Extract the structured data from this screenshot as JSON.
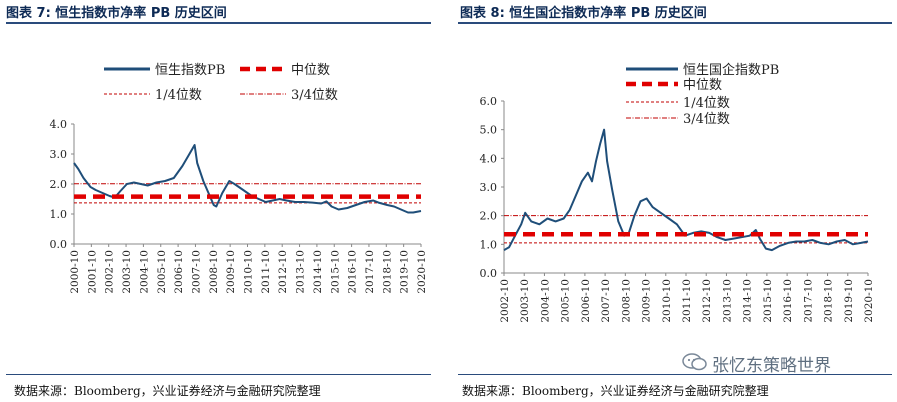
{
  "left": {
    "title": "图表 7: 恒生指数市净率 PB 历史区间",
    "source": "数据来源：Bloomberg，兴业证券经济与金融研究院整理"
  },
  "right": {
    "title": "图表 8: 恒生国企指数市净率 PB 历史区间",
    "source": "数据来源：Bloomberg，兴业证券经济与金融研究院整理"
  },
  "watermark": {
    "text": "张忆东策略世界"
  },
  "colors": {
    "series": "#1f4e79",
    "median": "#e00000",
    "quartile": "#c00000",
    "rule": "#2a4b7c"
  },
  "chart_data": [
    {
      "type": "line",
      "title": "恒生指数市净率 PB 历史区间",
      "legend": {
        "series": "恒生指数PB",
        "median": "中位数",
        "q1": "1/4位数",
        "q3": "3/4位数"
      },
      "ylim": [
        0,
        4
      ],
      "yticks": [
        "0.0",
        "1.0",
        "2.0",
        "3.0",
        "4.0"
      ],
      "xlim": [
        2000.75,
        2020.75
      ],
      "xticks": [
        "2000-10",
        "2001-10",
        "2002-10",
        "2003-10",
        "2004-10",
        "2005-10",
        "2006-10",
        "2007-10",
        "2008-10",
        "2009-10",
        "2010-10",
        "2011-10",
        "2012-10",
        "2013-10",
        "2014-10",
        "2015-10",
        "2016-10",
        "2017-10",
        "2018-10",
        "2019-10",
        "2020-10"
      ],
      "median": 1.58,
      "q1": 1.37,
      "q3": 2.01,
      "x": [
        2000.75,
        2001.0,
        2001.3,
        2001.7,
        2002.0,
        2002.4,
        2002.8,
        2003.1,
        2003.4,
        2003.8,
        2004.2,
        2004.6,
        2005.0,
        2005.5,
        2006.0,
        2006.5,
        2007.0,
        2007.4,
        2007.7,
        2007.85,
        2008.2,
        2008.5,
        2008.8,
        2008.95,
        2009.3,
        2009.7,
        2010.0,
        2010.5,
        2011.0,
        2011.4,
        2011.8,
        2012.2,
        2012.6,
        2013.0,
        2013.5,
        2014.0,
        2014.5,
        2015.0,
        2015.3,
        2015.6,
        2016.0,
        2016.5,
        2017.0,
        2017.5,
        2018.0,
        2018.3,
        2018.8,
        2019.2,
        2019.6,
        2020.0,
        2020.3,
        2020.75
      ],
      "values": [
        2.7,
        2.5,
        2.2,
        1.9,
        1.8,
        1.7,
        1.6,
        1.55,
        1.75,
        2.0,
        2.05,
        2.0,
        1.95,
        2.05,
        2.1,
        2.2,
        2.6,
        3.0,
        3.3,
        2.7,
        2.1,
        1.7,
        1.3,
        1.25,
        1.7,
        2.1,
        2.0,
        1.8,
        1.6,
        1.5,
        1.4,
        1.45,
        1.5,
        1.45,
        1.4,
        1.4,
        1.38,
        1.35,
        1.42,
        1.25,
        1.15,
        1.2,
        1.3,
        1.4,
        1.45,
        1.38,
        1.3,
        1.25,
        1.15,
        1.05,
        1.05,
        1.1
      ]
    },
    {
      "type": "line",
      "title": "恒生国企指数市净率 PB 历史区间",
      "legend": {
        "series": "恒生国企指数PB",
        "median": "中位数",
        "q1": "1/4位数",
        "q3": "3/4位数"
      },
      "ylim": [
        0,
        6
      ],
      "yticks": [
        "0.0",
        "1.0",
        "2.0",
        "3.0",
        "4.0",
        "5.0",
        "6.0"
      ],
      "xlim": [
        2002.75,
        2020.75
      ],
      "xticks": [
        "2002-10",
        "2003-10",
        "2004-10",
        "2005-10",
        "2006-10",
        "2007-10",
        "2008-10",
        "2009-10",
        "2010-10",
        "2011-10",
        "2012-10",
        "2013-10",
        "2014-10",
        "2015-10",
        "2016-10",
        "2017-10",
        "2018-10",
        "2019-10",
        "2020-10"
      ],
      "median": 1.35,
      "q1": 1.05,
      "q3": 2.0,
      "x": [
        2002.75,
        2003.0,
        2003.3,
        2003.6,
        2003.8,
        2004.1,
        2004.5,
        2004.9,
        2005.3,
        2005.7,
        2006.0,
        2006.3,
        2006.6,
        2006.9,
        2007.1,
        2007.3,
        2007.5,
        2007.7,
        2007.85,
        2008.1,
        2008.4,
        2008.7,
        2008.9,
        2009.2,
        2009.5,
        2009.8,
        2010.1,
        2010.5,
        2010.9,
        2011.3,
        2011.7,
        2012.1,
        2012.5,
        2012.9,
        2013.3,
        2013.7,
        2014.1,
        2014.5,
        2014.9,
        2015.2,
        2015.4,
        2015.7,
        2016.0,
        2016.4,
        2016.8,
        2017.2,
        2017.6,
        2018.0,
        2018.4,
        2018.8,
        2019.2,
        2019.6,
        2020.0,
        2020.4,
        2020.75
      ],
      "values": [
        0.8,
        0.9,
        1.3,
        1.7,
        2.1,
        1.8,
        1.7,
        1.9,
        1.8,
        1.9,
        2.2,
        2.7,
        3.2,
        3.5,
        3.2,
        3.9,
        4.5,
        5.0,
        3.9,
        2.9,
        1.8,
        1.3,
        1.35,
        2.0,
        2.5,
        2.6,
        2.3,
        2.1,
        1.9,
        1.7,
        1.3,
        1.4,
        1.45,
        1.4,
        1.25,
        1.15,
        1.2,
        1.25,
        1.3,
        1.5,
        1.2,
        0.85,
        0.8,
        0.95,
        1.05,
        1.1,
        1.1,
        1.15,
        1.05,
        1.0,
        1.1,
        1.15,
        1.0,
        1.05,
        1.1
      ]
    }
  ]
}
